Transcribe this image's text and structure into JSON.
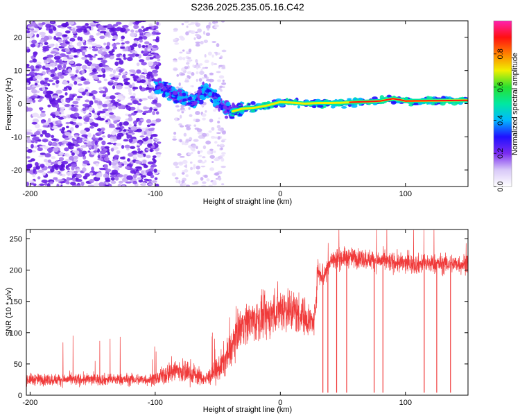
{
  "figure_title": "S236.2025.235.05.16.C42",
  "chart_data": [
    {
      "type": "heatmap",
      "name": "spectrogram",
      "xlabel": "Height of straight line (km)",
      "ylabel": "Frequency (Hz)",
      "xlim": [
        -203,
        150
      ],
      "ylim": [
        -25,
        25
      ],
      "xticks": [
        -200,
        -100,
        0,
        100
      ],
      "yticks": [
        -20,
        -10,
        0,
        10,
        20
      ],
      "colorbar": {
        "label": "Normalized spectral amplitude",
        "range": [
          0,
          1
        ],
        "ticks": [
          0.0,
          0.2,
          0.4,
          0.6,
          0.8
        ],
        "tick_labels": [
          "0.0",
          "0.2",
          "0.4",
          "0.6",
          "0.8"
        ],
        "colormap": [
          "#ffffff",
          "#d8c8f8",
          "#7a2cf0",
          "#2010ff",
          "#00b8ff",
          "#00e8a0",
          "#28e030",
          "#f0f000",
          "#ff8000",
          "#ff1010",
          "#ff20b0"
        ]
      },
      "ridge": {
        "x": [
          -100,
          -90,
          -80,
          -70,
          -60,
          -55,
          -50,
          -45,
          -40,
          -35,
          -30,
          -20,
          -10,
          0,
          10,
          20,
          30,
          40,
          50,
          60,
          70,
          80,
          90,
          95,
          100,
          150
        ],
        "frequency": [
          6,
          4,
          2,
          0.5,
          4,
          3,
          1,
          -1,
          -2.5,
          -2,
          -1.5,
          -1.2,
          -0.5,
          0.5,
          0.3,
          0,
          0.2,
          0.2,
          0.3,
          0.5,
          0.6,
          0.8,
          1.5,
          1.2,
          0.8,
          1.0
        ]
      }
    },
    {
      "type": "line",
      "name": "snr",
      "xlabel": "Height of straight line (km)",
      "ylabel": "SNR (10 * v/v)",
      "xlim": [
        -203,
        150
      ],
      "ylim": [
        0,
        265
      ],
      "xticks": [
        -200,
        -100,
        0,
        100
      ],
      "yticks": [
        0,
        50,
        100,
        150,
        200,
        250
      ],
      "color": "#f03a3a",
      "envelope": {
        "x": [
          -203,
          -100,
          -85,
          -70,
          -60,
          -50,
          -40,
          -35,
          -30,
          -20,
          -10,
          0,
          10,
          20,
          27,
          30,
          35,
          40,
          50,
          60,
          80,
          100,
          120,
          150
        ],
        "mean": [
          25,
          25,
          40,
          35,
          25,
          40,
          70,
          100,
          115,
          120,
          125,
          140,
          135,
          125,
          115,
          200,
          190,
          215,
          220,
          220,
          215,
          210,
          210,
          210
        ],
        "spread": [
          18,
          18,
          40,
          35,
          18,
          40,
          55,
          60,
          60,
          65,
          65,
          70,
          70,
          55,
          45,
          40,
          40,
          35,
          30,
          30,
          30,
          30,
          30,
          30
        ]
      },
      "dropouts_x": [
        34,
        38,
        45,
        53,
        75,
        82,
        115,
        125,
        136
      ]
    }
  ]
}
